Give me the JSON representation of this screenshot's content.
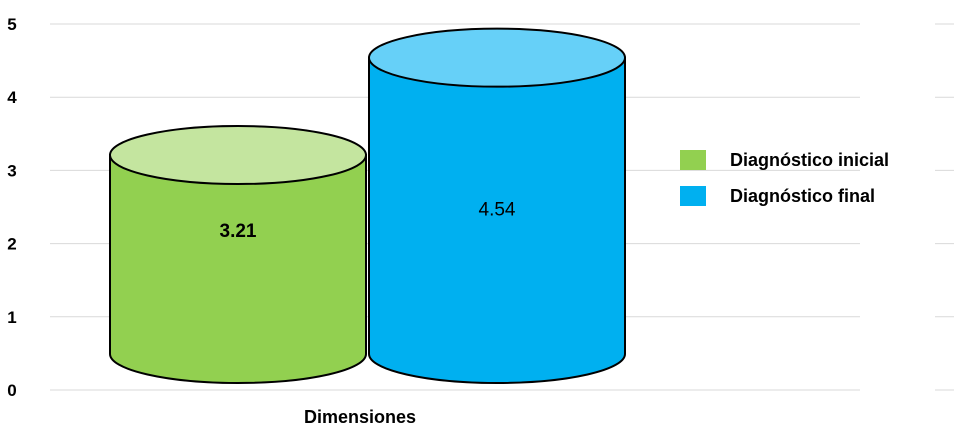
{
  "chart_data": {
    "type": "bar",
    "style": "3d-cylinder",
    "xlabel": "Dimensiones",
    "ylabel": "",
    "ylim": [
      0,
      5
    ],
    "yticks": [
      0,
      1,
      2,
      3,
      4,
      5
    ],
    "grid": true,
    "legend_position": "right",
    "series": [
      {
        "name": "Diagnóstico inicial",
        "value": 3.21,
        "label": "3.21",
        "label_bold": true,
        "color": "#92d050",
        "top_color": "#c4e59f"
      },
      {
        "name": "Diagnóstico final",
        "value": 4.54,
        "label": "4.54",
        "label_bold": false,
        "color": "#00b0f0",
        "top_color": "#66d0f8"
      }
    ]
  }
}
